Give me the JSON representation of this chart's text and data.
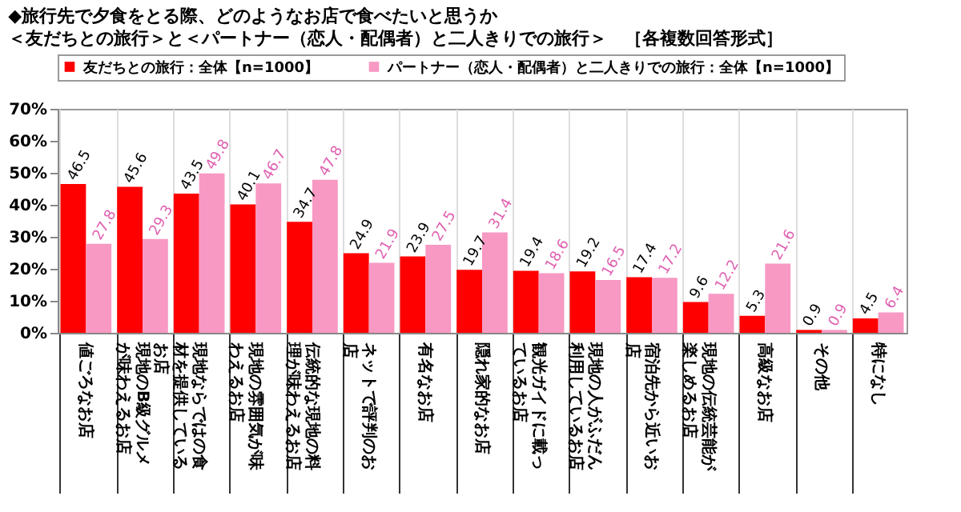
{
  "chart_data": {
    "type": "bar",
    "title": "◆旅行先で夕食をとる際、どのようなお店で食べたいと思うか",
    "subtitle": "＜友だちとの旅行＞と＜パートナー（恋人・配偶者）と二人きりでの旅行＞　［各複数回答形式］",
    "categories": [
      "値ごろなお店",
      "現地のB級グルメが味わえるお店",
      "現地ならではの食材を提供しているお店",
      "現地の雰囲気が味わえるお店",
      "伝統的な現地の料理が味わえるお店",
      "ネットで評判のお店",
      "有名なお店",
      "隠れ家的なお店",
      "観光ガイドに載っているお店",
      "現地の人がふだん利用しているお店",
      "宿泊先から近いお店",
      "現地の伝統芸能が楽しめるお店",
      "高級なお店",
      "その他",
      "特になし"
    ],
    "series": [
      {
        "name": "友だちとの旅行：全体【n=1000】",
        "color": "#ff0000",
        "values": [
          46.5,
          45.6,
          43.5,
          40.1,
          34.7,
          24.9,
          23.9,
          19.7,
          19.4,
          19.2,
          17.4,
          9.6,
          5.3,
          0.9,
          4.5
        ]
      },
      {
        "name": "パートナー（恋人・配偶者）と二人きりでの旅行：全体【n=1000】",
        "color": "#f799c3",
        "values": [
          27.8,
          29.3,
          49.8,
          46.7,
          47.8,
          21.9,
          27.5,
          31.4,
          18.6,
          16.5,
          17.2,
          12.2,
          21.6,
          0.9,
          6.4
        ]
      }
    ],
    "ylim": [
      0,
      70
    ],
    "yticks": [
      {
        "value": 0,
        "label": "0%"
      },
      {
        "value": 10,
        "label": "10%"
      },
      {
        "value": 20,
        "label": "20%"
      },
      {
        "value": 30,
        "label": "30%"
      },
      {
        "value": 40,
        "label": "40%"
      },
      {
        "value": 50,
        "label": "50%"
      },
      {
        "value": 60,
        "label": "60%"
      },
      {
        "value": 70,
        "label": "70%"
      }
    ],
    "data_labels": true,
    "grid": "x",
    "legend": "top"
  }
}
